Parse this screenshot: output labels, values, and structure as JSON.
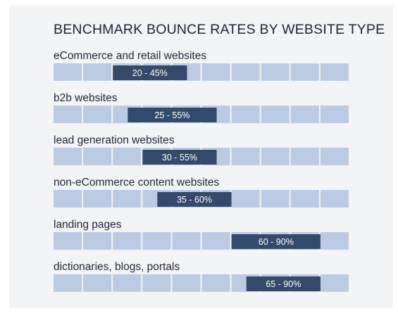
{
  "chart_data": {
    "type": "bar",
    "title": "BENCHMARK BOUNCE RATES BY WEBSITE TYPE",
    "xlim": [
      0,
      100
    ],
    "x_unit": "%",
    "grid_cells": 10,
    "colors": {
      "background": "#f3f4f6",
      "cell": "#bccbe4",
      "range_bar": "#344a6c",
      "range_text": "#ffffff"
    },
    "categories": [
      "eCommerce and retail websites",
      "b2b websites",
      "lead generation websites",
      "non-eCommerce content websites",
      "landing pages",
      "dictionaries, blogs, portals"
    ],
    "ranges": [
      {
        "low": 20,
        "high": 45,
        "label": "20 - 45%"
      },
      {
        "low": 25,
        "high": 55,
        "label": "25 - 55%"
      },
      {
        "low": 30,
        "high": 55,
        "label": "30 - 55%"
      },
      {
        "low": 35,
        "high": 60,
        "label": "35 - 60%"
      },
      {
        "low": 60,
        "high": 90,
        "label": "60 - 90%"
      },
      {
        "low": 65,
        "high": 90,
        "label": "65 - 90%"
      }
    ]
  }
}
